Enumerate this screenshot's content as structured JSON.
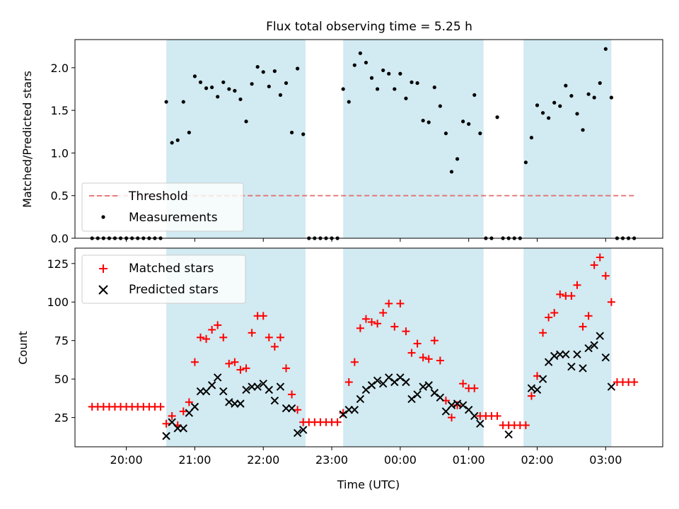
{
  "title": "Flux total observing time = 5.25 h",
  "colors": {
    "band": "#add8e6",
    "threshold": "#e06666",
    "measurement": "#000000",
    "matched": "#ff0000",
    "predicted": "#000000"
  },
  "chart_data": [
    {
      "type": "scatter",
      "panel": "top",
      "ylabel": "Matched/Predicted stars",
      "ylim": [
        0,
        2.33
      ],
      "yticks": [
        0.0,
        0.5,
        1.0,
        1.5,
        2.0
      ],
      "ytick_labels": [
        "0.0",
        "0.5",
        "1.0",
        "1.5",
        "2.0"
      ],
      "xlim": [
        "19:15",
        "03:50"
      ],
      "legend": {
        "placement": "lower-left",
        "entries": [
          "Threshold",
          "Measurements"
        ]
      },
      "threshold": {
        "name": "Threshold",
        "value": 0.5,
        "x": [
          "19:30",
          "03:25"
        ]
      },
      "observing_windows": [
        [
          "20:35",
          "22:37"
        ],
        [
          "23:10",
          "01:13"
        ],
        [
          "01:48",
          "03:05"
        ]
      ],
      "series": [
        {
          "name": "Measurements",
          "x": [
            "19:30",
            "19:35",
            "19:40",
            "19:45",
            "19:50",
            "19:55",
            "20:00",
            "20:05",
            "20:10",
            "20:15",
            "20:20",
            "20:25",
            "20:30",
            "20:35",
            "20:40",
            "20:45",
            "20:50",
            "20:55",
            "21:00",
            "21:05",
            "21:10",
            "21:15",
            "21:20",
            "21:25",
            "21:30",
            "21:35",
            "21:40",
            "21:45",
            "21:50",
            "21:55",
            "22:00",
            "22:05",
            "22:10",
            "22:15",
            "22:20",
            "22:25",
            "22:30",
            "22:35",
            "22:40",
            "22:45",
            "22:50",
            "22:55",
            "23:00",
            "23:05",
            "23:10",
            "23:15",
            "23:20",
            "23:25",
            "23:30",
            "23:35",
            "23:40",
            "23:45",
            "23:50",
            "23:55",
            "00:00",
            "00:05",
            "00:10",
            "00:15",
            "00:20",
            "00:25",
            "00:30",
            "00:35",
            "00:40",
            "00:45",
            "00:50",
            "00:55",
            "01:00",
            "01:05",
            "01:10",
            "01:15",
            "01:20",
            "01:25",
            "01:30",
            "01:35",
            "01:40",
            "01:45",
            "01:50",
            "01:55",
            "02:00",
            "02:05",
            "02:10",
            "02:15",
            "02:20",
            "02:25",
            "02:30",
            "02:35",
            "02:40",
            "02:45",
            "02:50",
            "02:55",
            "03:00",
            "03:05",
            "03:10",
            "03:15",
            "03:20",
            "03:25"
          ],
          "y": [
            0,
            0,
            0,
            0,
            0,
            0,
            0,
            0,
            0,
            0,
            0,
            0,
            0,
            1.6,
            1.12,
            1.15,
            1.6,
            1.24,
            1.9,
            1.83,
            1.76,
            1.77,
            1.66,
            1.83,
            1.75,
            1.73,
            1.63,
            1.37,
            1.81,
            2.01,
            1.95,
            1.78,
            1.96,
            1.68,
            1.82,
            1.24,
            1.99,
            1.22,
            0,
            0,
            0,
            0,
            0,
            0,
            1.75,
            1.6,
            2.03,
            2.17,
            2.06,
            1.88,
            1.75,
            1.97,
            1.93,
            1.75,
            1.93,
            1.64,
            1.83,
            1.82,
            1.38,
            1.36,
            1.77,
            1.55,
            1.23,
            0.78,
            0.93,
            1.37,
            1.34,
            1.68,
            1.23,
            0,
            0,
            1.42,
            0,
            0,
            0,
            0,
            0.89,
            1.18,
            1.56,
            1.47,
            1.41,
            1.59,
            1.55,
            1.79,
            1.67,
            1.46,
            1.27,
            1.69,
            1.65,
            1.82,
            2.22,
            1.65,
            0,
            0,
            0,
            0
          ]
        }
      ]
    },
    {
      "type": "scatter",
      "panel": "bottom",
      "xlabel": "Time (UTC)",
      "ylabel": "Count",
      "ylim": [
        6,
        135
      ],
      "yticks": [
        25,
        50,
        75,
        100,
        125
      ],
      "ytick_labels": [
        "25",
        "50",
        "75",
        "100",
        "125"
      ],
      "xlim": [
        "19:15",
        "03:50"
      ],
      "xticks": [
        "20:00",
        "21:00",
        "22:00",
        "23:00",
        "00:00",
        "01:00",
        "02:00",
        "03:00"
      ],
      "legend": {
        "placement": "upper-left",
        "entries": [
          "Matched stars",
          "Predicted stars"
        ]
      },
      "observing_windows": [
        [
          "20:35",
          "22:37"
        ],
        [
          "23:10",
          "01:13"
        ],
        [
          "01:48",
          "03:05"
        ]
      ],
      "series": [
        {
          "name": "Matched stars",
          "marker": "+",
          "x": [
            "19:30",
            "19:35",
            "19:40",
            "19:45",
            "19:50",
            "19:55",
            "20:00",
            "20:05",
            "20:10",
            "20:15",
            "20:20",
            "20:25",
            "20:30",
            "20:35",
            "20:40",
            "20:45",
            "20:50",
            "20:55",
            "21:00",
            "21:05",
            "21:10",
            "21:15",
            "21:20",
            "21:25",
            "21:30",
            "21:35",
            "21:40",
            "21:45",
            "21:50",
            "21:55",
            "22:00",
            "22:05",
            "22:10",
            "22:15",
            "22:20",
            "22:25",
            "22:30",
            "22:35",
            "22:40",
            "22:45",
            "22:50",
            "22:55",
            "23:00",
            "23:05",
            "23:10",
            "23:15",
            "23:20",
            "23:25",
            "23:30",
            "23:35",
            "23:40",
            "23:45",
            "23:50",
            "23:55",
            "00:00",
            "00:05",
            "00:10",
            "00:15",
            "00:20",
            "00:25",
            "00:30",
            "00:35",
            "00:40",
            "00:45",
            "00:50",
            "00:55",
            "01:00",
            "01:05",
            "01:10",
            "01:15",
            "01:20",
            "01:25",
            "01:30",
            "01:35",
            "01:40",
            "01:45",
            "01:50",
            "01:55",
            "02:00",
            "02:05",
            "02:10",
            "02:15",
            "02:20",
            "02:25",
            "02:30",
            "02:35",
            "02:40",
            "02:45",
            "02:50",
            "02:55",
            "03:00",
            "03:05",
            "03:10",
            "03:15",
            "03:20",
            "03:25"
          ],
          "y": [
            32,
            32,
            32,
            32,
            32,
            32,
            32,
            32,
            32,
            32,
            32,
            32,
            32,
            21,
            26,
            20,
            29,
            35,
            61,
            77,
            76,
            82,
            85,
            77,
            60,
            61,
            56,
            57,
            80,
            91,
            91,
            77,
            71,
            77,
            57,
            40,
            30,
            22,
            22,
            22,
            22,
            22,
            22,
            22,
            28,
            48,
            61,
            83,
            89,
            87,
            86,
            93,
            99,
            84,
            99,
            81,
            67,
            73,
            64,
            63,
            75,
            62,
            36,
            25,
            33,
            47,
            44,
            44,
            26,
            26,
            26,
            26,
            20,
            20,
            20,
            20,
            20,
            39,
            52,
            80,
            90,
            93,
            105,
            104,
            104,
            111,
            84,
            91,
            124,
            129,
            117,
            100,
            48,
            48,
            48,
            48
          ]
        },
        {
          "name": "Predicted stars",
          "marker": "x",
          "x": [
            "20:35",
            "20:40",
            "20:45",
            "20:50",
            "20:55",
            "21:00",
            "21:05",
            "21:10",
            "21:15",
            "21:20",
            "21:25",
            "21:30",
            "21:35",
            "21:40",
            "21:45",
            "21:50",
            "21:55",
            "22:00",
            "22:05",
            "22:10",
            "22:15",
            "22:20",
            "22:25",
            "22:30",
            "22:35",
            "23:10",
            "23:15",
            "23:20",
            "23:25",
            "23:30",
            "23:35",
            "23:40",
            "23:45",
            "23:50",
            "23:55",
            "00:00",
            "00:05",
            "00:10",
            "00:15",
            "00:20",
            "00:25",
            "00:30",
            "00:35",
            "00:40",
            "00:45",
            "00:50",
            "00:55",
            "01:00",
            "01:05",
            "01:10",
            "01:35",
            "01:55",
            "02:00",
            "02:05",
            "02:10",
            "02:15",
            "02:20",
            "02:25",
            "02:30",
            "02:35",
            "02:40",
            "02:45",
            "02:50",
            "02:55",
            "03:00",
            "03:05"
          ],
          "y": [
            13,
            22,
            18,
            18,
            28,
            32,
            42,
            42,
            46,
            51,
            42,
            35,
            34,
            34,
            43,
            45,
            45,
            47,
            43,
            36,
            45,
            31,
            31,
            15,
            17,
            27,
            30,
            30,
            37,
            43,
            46,
            49,
            47,
            51,
            48,
            51,
            48,
            37,
            40,
            45,
            46,
            41,
            38,
            29,
            33,
            34,
            33,
            30,
            26,
            21,
            14,
            44,
            43,
            50,
            61,
            65,
            66,
            66,
            58,
            66,
            57,
            70,
            72,
            78,
            64,
            45
          ]
        }
      ]
    }
  ]
}
